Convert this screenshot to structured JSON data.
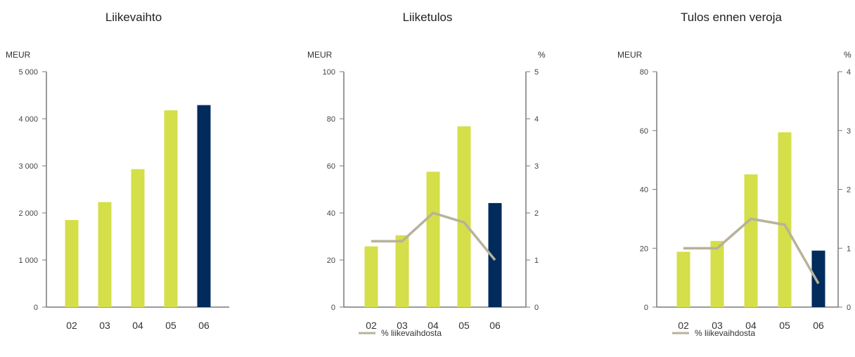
{
  "chart_data": [
    {
      "type": "bar",
      "title": "Liikevaihto",
      "ylabel": "MEUR",
      "categories": [
        "02",
        "03",
        "04",
        "05",
        "06"
      ],
      "values": [
        1850,
        2230,
        2930,
        4180,
        4290
      ],
      "ylim": [
        0,
        5000
      ],
      "yticks": [
        "0",
        "1 000",
        "2 000",
        "3 000",
        "4 000",
        "5 000"
      ],
      "highlight_last": true
    },
    {
      "type": "bar",
      "title": "Liiketulos",
      "ylabel": "MEUR",
      "y2label": "%",
      "categories": [
        "02",
        "03",
        "04",
        "05",
        "06"
      ],
      "values": [
        25.8,
        30.5,
        57.5,
        76.8,
        44.2
      ],
      "ylim": [
        0,
        100
      ],
      "yticks": [
        "0",
        "20",
        "40",
        "60",
        "80",
        "100"
      ],
      "y2lim": [
        0,
        5
      ],
      "y2ticks": [
        "0",
        "1",
        "2",
        "3",
        "4",
        "5"
      ],
      "line": {
        "name": "% liikevaihdosta",
        "values": [
          1.4,
          1.4,
          2.0,
          1.8,
          1.0
        ]
      },
      "highlight_last": true
    },
    {
      "type": "bar",
      "title": "Tulos ennen veroja",
      "ylabel": "MEUR",
      "y2label": "%",
      "categories": [
        "02",
        "03",
        "04",
        "05",
        "06"
      ],
      "values": [
        18.8,
        22.5,
        45.1,
        59.4,
        19.2
      ],
      "ylim": [
        0,
        80
      ],
      "yticks": [
        "0",
        "20",
        "40",
        "60",
        "80"
      ],
      "y2lim": [
        0,
        4
      ],
      "y2ticks": [
        "0",
        "1",
        "2",
        "3",
        "4"
      ],
      "line": {
        "name": "% liikevaihdosta",
        "values": [
          1.0,
          1.0,
          1.5,
          1.4,
          0.4
        ]
      },
      "highlight_last": true
    }
  ],
  "colors": {
    "bar": "#d4df4a",
    "bar_highlight": "#002b5c",
    "line": "#b8b299",
    "axis": "#7a7a7a"
  }
}
